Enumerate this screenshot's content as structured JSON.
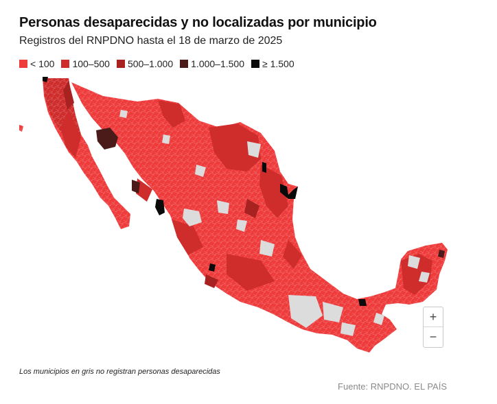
{
  "header": {
    "title": "Personas desaparecidas y no localizadas por municipio",
    "subtitle": "Registros del RNPDNO hasta el 18 de marzo de 2025"
  },
  "legend": {
    "items": [
      {
        "label": "< 100",
        "color": "#ee3b3b"
      },
      {
        "label": "100–500",
        "color": "#cf2c2c"
      },
      {
        "label": "500–1.000",
        "color": "#a82222"
      },
      {
        "label": "1.000–1.500",
        "color": "#4a1b18"
      },
      {
        "label": "≥ 1.500",
        "color": "#0a0a0a"
      }
    ]
  },
  "map": {
    "region": "Mexico",
    "no_data_color": "#dcdcdc",
    "zoom_in_label": "+",
    "zoom_out_label": "−"
  },
  "footer": {
    "note": "Los municipios en gris no registran personas desaparecidas",
    "source": "Fuente: RNPDNO. EL PAÍS"
  }
}
